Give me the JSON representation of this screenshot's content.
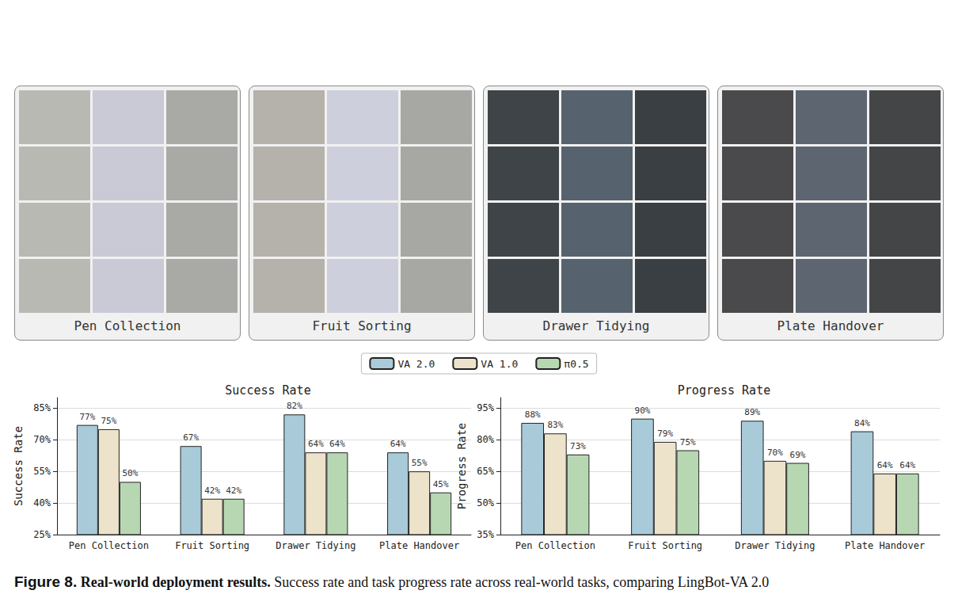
{
  "chart_data": [
    {
      "type": "bar",
      "title": "Success Rate",
      "y_label": "Success Rate",
      "categories": [
        "Pen Collection",
        "Fruit Sorting",
        "Drawer Tidying",
        "Plate Handover"
      ],
      "series": [
        {
          "name": "VA 2.0",
          "color": "#a9cbd9",
          "values": [
            77,
            67,
            82,
            64
          ],
          "value_labels": [
            "77%",
            "67%",
            "82%",
            "64%"
          ]
        },
        {
          "name": "VA 1.0",
          "color": "#ede3cb",
          "values": [
            75,
            42,
            64,
            55
          ],
          "value_labels": [
            "75%",
            "42%",
            "64%",
            "55%"
          ]
        },
        {
          "name": "π0.5",
          "color": "#b7d7b3",
          "values": [
            50,
            42,
            64,
            45
          ],
          "value_labels": [
            "50%",
            "42%",
            "64%",
            "45%"
          ]
        }
      ],
      "ylim": [
        25,
        90
      ],
      "yticks": [
        {
          "value": 25,
          "label": "25%"
        },
        {
          "value": 40,
          "label": "40%"
        },
        {
          "value": 55,
          "label": "55%"
        },
        {
          "value": 70,
          "label": "70%"
        },
        {
          "value": 85,
          "label": "85%"
        }
      ],
      "grid": true,
      "legend": "top",
      "data_labels": true
    },
    {
      "type": "bar",
      "title": "Progress Rate",
      "y_label": "Progress Rate",
      "categories": [
        "Pen Collection",
        "Fruit Sorting",
        "Drawer Tidying",
        "Plate Handover"
      ],
      "series": [
        {
          "name": "VA 2.0",
          "color": "#a9cbd9",
          "values": [
            88,
            90,
            89,
            84
          ],
          "value_labels": [
            "88%",
            "90%",
            "89%",
            "84%"
          ]
        },
        {
          "name": "VA 1.0",
          "color": "#ede3cb",
          "values": [
            83,
            79,
            70,
            64
          ],
          "value_labels": [
            "83%",
            "79%",
            "70%",
            "64%"
          ]
        },
        {
          "name": "π0.5",
          "color": "#b7d7b3",
          "values": [
            73,
            75,
            69,
            64
          ],
          "value_labels": [
            "73%",
            "75%",
            "69%",
            "64%"
          ]
        }
      ],
      "ylim": [
        35,
        100
      ],
      "yticks": [
        {
          "value": 35,
          "label": "35%"
        },
        {
          "value": 50,
          "label": "50%"
        },
        {
          "value": 65,
          "label": "65%"
        },
        {
          "value": 80,
          "label": "80%"
        },
        {
          "value": 95,
          "label": "95%"
        }
      ],
      "grid": true,
      "legend": "top",
      "data_labels": true
    }
  ],
  "panels": [
    "Pen Collection",
    "Fruit Sorting",
    "Drawer Tidying",
    "Plate Handover"
  ],
  "caption": {
    "label": "Figure 8.",
    "title": "Real-world deployment results.",
    "text": "Success rate and task progress rate across real-world tasks, comparing LingBot-VA 2.0"
  }
}
